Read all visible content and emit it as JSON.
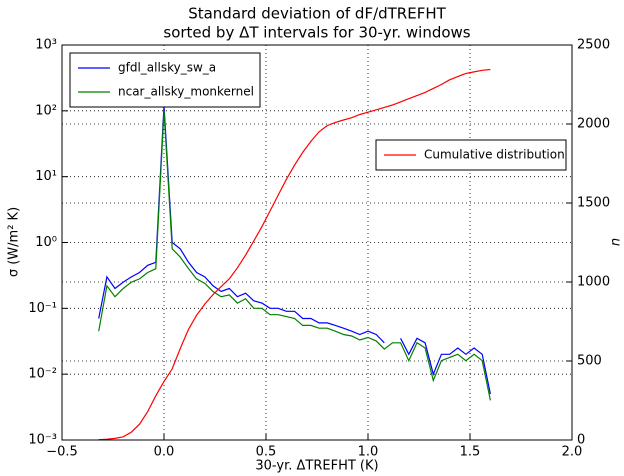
{
  "chart_data": {
    "type": "line",
    "title": "Standard deviation of dF/dTREFHT",
    "subtitle": "sorted by ΔT intervals for 30-yr. windows",
    "x_label": "30-yr. ΔTREFHT (K)",
    "y_label": "σ (W/m² K)",
    "y2_label": "n",
    "x": [
      -0.32,
      -0.28,
      -0.24,
      -0.2,
      -0.16,
      -0.12,
      -0.08,
      -0.04,
      0.0,
      0.04,
      0.08,
      0.12,
      0.16,
      0.2,
      0.24,
      0.28,
      0.32,
      0.36,
      0.4,
      0.44,
      0.48,
      0.52,
      0.56,
      0.6,
      0.64,
      0.68,
      0.72,
      0.76,
      0.8,
      0.84,
      0.88,
      0.92,
      0.96,
      1.0,
      1.04,
      1.08,
      1.12,
      1.16,
      1.2,
      1.24,
      1.28,
      1.32,
      1.36,
      1.4,
      1.44,
      1.48,
      1.52,
      1.56,
      1.6
    ],
    "series": [
      {
        "name": "gfdl_allsky_sw_a",
        "color": "#0000ff",
        "axis": "y",
        "legend": "upper left",
        "values": [
          0.07,
          0.3,
          0.2,
          0.25,
          0.3,
          0.35,
          0.45,
          0.5,
          120,
          1.0,
          0.8,
          0.5,
          0.35,
          0.3,
          0.22,
          0.18,
          0.2,
          0.15,
          0.17,
          0.13,
          0.12,
          0.1,
          0.1,
          0.09,
          0.09,
          0.07,
          0.07,
          0.06,
          0.06,
          0.055,
          0.05,
          0.045,
          0.04,
          0.045,
          0.04,
          0.03,
          null,
          0.035,
          0.02,
          0.035,
          0.03,
          0.01,
          0.02,
          0.02,
          0.025,
          0.02,
          0.025,
          0.02,
          0.005
        ]
      },
      {
        "name": "ncar_allsky_monkernel",
        "color": "#008000",
        "axis": "y",
        "legend": "upper left",
        "values": [
          0.045,
          0.22,
          0.15,
          0.2,
          0.25,
          0.28,
          0.35,
          0.4,
          100,
          0.8,
          0.6,
          0.4,
          0.28,
          0.24,
          0.18,
          0.15,
          0.16,
          0.12,
          0.14,
          0.1,
          0.1,
          0.08,
          0.08,
          0.075,
          0.07,
          0.055,
          0.055,
          0.05,
          0.05,
          0.045,
          0.04,
          0.038,
          0.033,
          0.036,
          0.032,
          0.024,
          0.03,
          0.03,
          0.016,
          0.03,
          0.025,
          0.008,
          0.016,
          0.018,
          0.02,
          0.016,
          0.02,
          0.016,
          0.004
        ]
      },
      {
        "name": "Cumulative distribution",
        "color": "#ff0000",
        "axis": "y2",
        "legend": "center right",
        "values": [
          2,
          5,
          10,
          20,
          50,
          100,
          180,
          280,
          370,
          450,
          580,
          700,
          790,
          860,
          920,
          970,
          1020,
          1090,
          1170,
          1260,
          1350,
          1450,
          1550,
          1650,
          1740,
          1820,
          1890,
          1950,
          1990,
          2010,
          2025,
          2040,
          2060,
          2075,
          2090,
          2105,
          2120,
          2140,
          2160,
          2180,
          2200,
          2225,
          2250,
          2280,
          2300,
          2320,
          2330,
          2340,
          2345
        ]
      }
    ],
    "xlim": [
      -0.5,
      2.0
    ],
    "xticks": [
      {
        "value": -0.5,
        "label": "−0.5"
      },
      {
        "value": 0,
        "label": "0.0"
      },
      {
        "value": 0.5,
        "label": "0.5"
      },
      {
        "value": 1,
        "label": "1.0"
      },
      {
        "value": 1.5,
        "label": "1.5"
      },
      {
        "value": 2,
        "label": "2.0"
      }
    ],
    "ylim": [
      0.001,
      1000
    ],
    "y_scale": "log",
    "yticks": [
      {
        "value": 0.001,
        "label": "10⁻³"
      },
      {
        "value": 0.01,
        "label": "10⁻²"
      },
      {
        "value": 0.1,
        "label": "10⁻¹"
      },
      {
        "value": 1,
        "label": "10⁰"
      },
      {
        "value": 10,
        "label": "10¹"
      },
      {
        "value": 100,
        "label": "10²"
      },
      {
        "value": 1000,
        "label": "10³"
      }
    ],
    "y2lim": [
      0,
      2500
    ],
    "y2ticks": [
      0,
      500,
      1000,
      1500,
      2000,
      2500
    ],
    "grid": true
  }
}
